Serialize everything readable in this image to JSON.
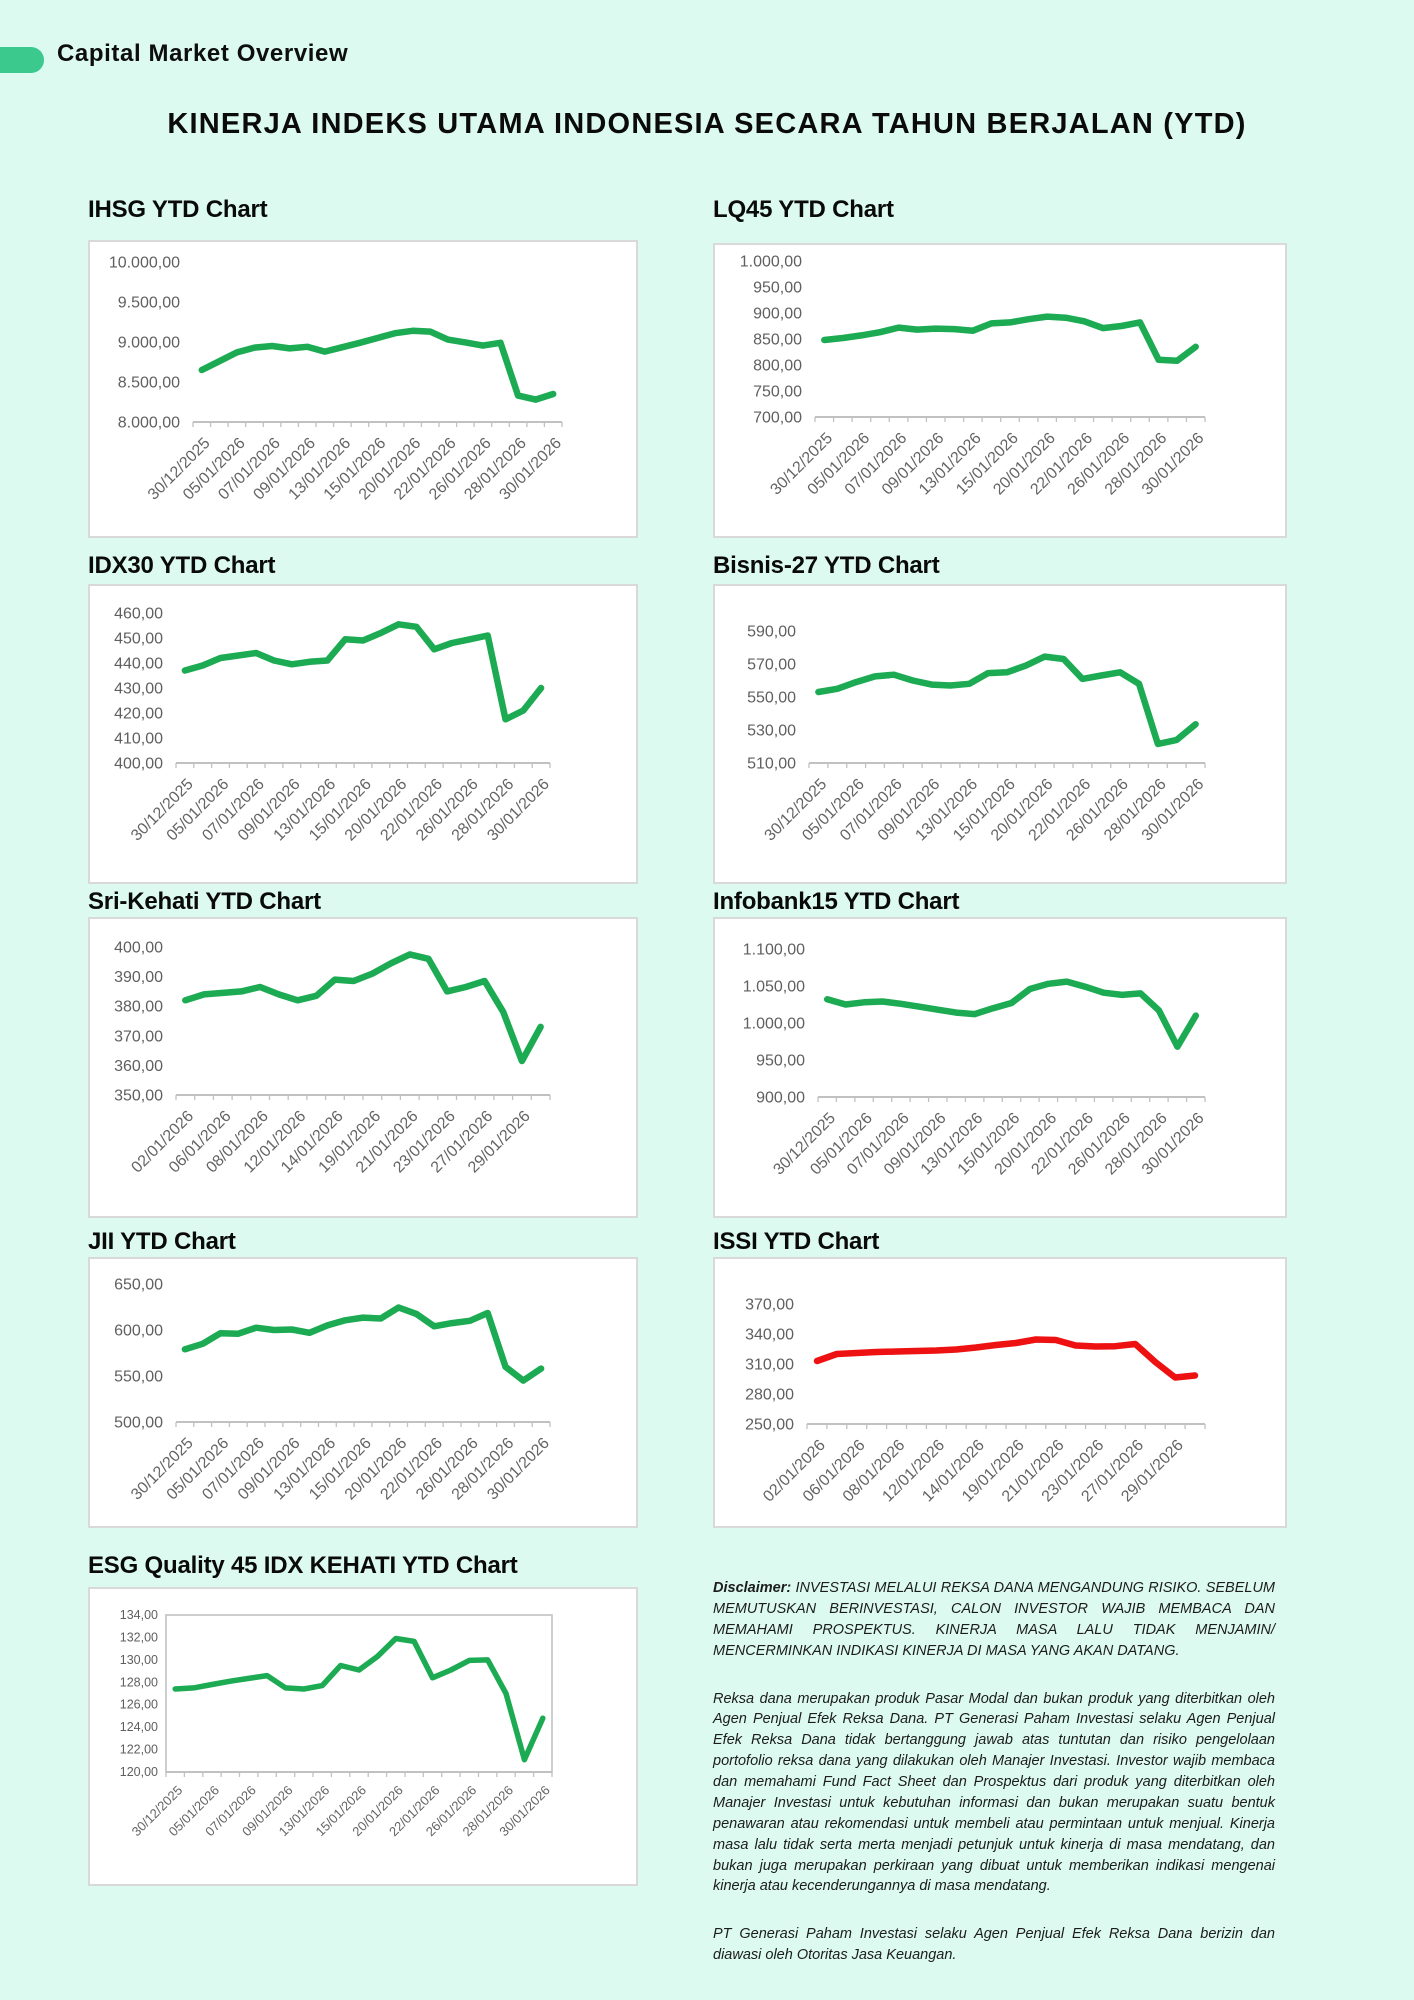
{
  "page": {
    "badge_label": "Capital Market Overview",
    "main_title": "KINERJA INDEKS UTAMA INDONESIA SECARA TAHUN BERJALAN (YTD)"
  },
  "colors": {
    "background": "#dcfaf0",
    "badge_green": "#3bc98e",
    "line_green": "#1cab52",
    "line_red": "#ee1111",
    "axis_line": "#c1c1c1",
    "axis_label": "#5f5f5f",
    "card_border": "#d9d9d9",
    "card_background": "#ffffff"
  },
  "chart_data": [
    {
      "id": "ihsg",
      "type": "line",
      "title": "IHSG YTD Chart",
      "color": "#1cab52",
      "ylim": [
        8000,
        10000
      ],
      "y_ticks": [
        "8.000,00",
        "8.500,00",
        "9.000,00",
        "9.500,00",
        "10.000,00"
      ],
      "x_labels": [
        "30/12/2025",
        "05/01/2026",
        "07/01/2026",
        "09/01/2026",
        "13/01/2026",
        "15/01/2026",
        "20/01/2026",
        "22/01/2026",
        "26/01/2026",
        "28/01/2026",
        "30/01/2026"
      ],
      "values": [
        8650,
        8760,
        8870,
        8930,
        8950,
        8920,
        8940,
        8880,
        8935,
        8990,
        9050,
        9110,
        9140,
        9130,
        9030,
        8995,
        8955,
        8990,
        8330,
        8280,
        8350
      ]
    },
    {
      "id": "lq45",
      "type": "line",
      "title": "LQ45 YTD Chart",
      "color": "#1cab52",
      "ylim": [
        700,
        1000
      ],
      "y_ticks": [
        "700,00",
        "750,00",
        "800,00",
        "850,00",
        "900,00",
        "950,00",
        "1.000,00"
      ],
      "x_labels": [
        "30/12/2025",
        "05/01/2026",
        "07/01/2026",
        "09/01/2026",
        "13/01/2026",
        "15/01/2026",
        "20/01/2026",
        "22/01/2026",
        "26/01/2026",
        "28/01/2026",
        "30/01/2026"
      ],
      "values": [
        848,
        852,
        857,
        863,
        872,
        868,
        870,
        869,
        866,
        880,
        882,
        888,
        893,
        891,
        884,
        871,
        875,
        882,
        810,
        808,
        835
      ]
    },
    {
      "id": "idx30",
      "type": "line",
      "title": "IDX30 YTD Chart",
      "color": "#1cab52",
      "ylim": [
        400,
        460
      ],
      "y_ticks": [
        "400,00",
        "410,00",
        "420,00",
        "430,00",
        "440,00",
        "450,00",
        "460,00"
      ],
      "x_labels": [
        "30/12/2025",
        "05/01/2026",
        "07/01/2026",
        "09/01/2026",
        "13/01/2026",
        "15/01/2026",
        "20/01/2026",
        "22/01/2026",
        "26/01/2026",
        "28/01/2026",
        "30/01/2026"
      ],
      "values": [
        437,
        439,
        442,
        443,
        444,
        441,
        439.5,
        440.5,
        441,
        449.5,
        449,
        452,
        455.5,
        454.5,
        445.5,
        448,
        449.5,
        451,
        417.5,
        421,
        430
      ]
    },
    {
      "id": "bisnis27",
      "type": "line",
      "title": "Bisnis-27 YTD Chart",
      "color": "#1cab52",
      "ylim": [
        510,
        590
      ],
      "y_ticks": [
        "510,00",
        "530,00",
        "550,00",
        "570,00",
        "590,00"
      ],
      "x_labels": [
        "30/12/2025",
        "05/01/2026",
        "07/01/2026",
        "09/01/2026",
        "13/01/2026",
        "15/01/2026",
        "20/01/2026",
        "22/01/2026",
        "26/01/2026",
        "28/01/2026",
        "30/01/2026"
      ],
      "values": [
        553,
        555,
        559,
        562.5,
        563.5,
        560,
        557.5,
        557,
        558,
        564.5,
        565,
        569,
        574.5,
        573,
        561,
        563,
        565,
        558,
        521.5,
        524,
        533.5
      ]
    },
    {
      "id": "srikehati",
      "type": "line",
      "title": "Sri-Kehati YTD Chart",
      "color": "#1cab52",
      "ylim": [
        350,
        400
      ],
      "y_ticks": [
        "350,00",
        "360,00",
        "370,00",
        "380,00",
        "390,00",
        "400,00"
      ],
      "x_labels": [
        "02/01/2026",
        "06/01/2026",
        "08/01/2026",
        "12/01/2026",
        "14/01/2026",
        "19/01/2026",
        "21/01/2026",
        "23/01/2026",
        "27/01/2026",
        "29/01/2026"
      ],
      "values": [
        382,
        384,
        384.5,
        385,
        386.5,
        384,
        382,
        383.5,
        389,
        388.5,
        391,
        394.5,
        397.5,
        396,
        385,
        386.5,
        388.5,
        378,
        361.5,
        373
      ]
    },
    {
      "id": "infobank15",
      "type": "line",
      "title": "Infobank15 YTD Chart",
      "color": "#1cab52",
      "ylim": [
        900,
        1100
      ],
      "y_ticks": [
        "900,00",
        "950,00",
        "1.000,00",
        "1.050,00",
        "1.100,00"
      ],
      "x_labels": [
        "30/12/2025",
        "05/01/2026",
        "07/01/2026",
        "09/01/2026",
        "13/01/2026",
        "15/01/2026",
        "20/01/2026",
        "22/01/2026",
        "26/01/2026",
        "28/01/2026",
        "30/01/2026"
      ],
      "values": [
        1032,
        1025,
        1028,
        1029,
        1026,
        1022,
        1018,
        1014,
        1012,
        1020,
        1027,
        1046,
        1053,
        1056,
        1049,
        1041,
        1038,
        1040,
        1017,
        968,
        1010
      ]
    },
    {
      "id": "jii",
      "type": "line",
      "title": "JII YTD Chart",
      "color": "#1cab52",
      "ylim": [
        500,
        650
      ],
      "y_ticks": [
        "500,00",
        "550,00",
        "600,00",
        "650,00"
      ],
      "x_labels": [
        "30/12/2025",
        "05/01/2026",
        "07/01/2026",
        "09/01/2026",
        "13/01/2026",
        "15/01/2026",
        "20/01/2026",
        "22/01/2026",
        "26/01/2026",
        "28/01/2026",
        "30/01/2026"
      ],
      "values": [
        579,
        585,
        596.5,
        596,
        602.5,
        600,
        600.5,
        597,
        605,
        610.5,
        613.5,
        612.5,
        624.5,
        617.5,
        604,
        607.5,
        610,
        618.5,
        560,
        545,
        558
      ]
    },
    {
      "id": "issi",
      "type": "line",
      "title": "ISSI YTD Chart",
      "color": "#ee1111",
      "ylim": [
        250,
        370
      ],
      "y_ticks": [
        "250,00",
        "280,00",
        "310,00",
        "340,00",
        "370,00"
      ],
      "x_labels": [
        "02/01/2026",
        "06/01/2026",
        "08/01/2026",
        "12/01/2026",
        "14/01/2026",
        "19/01/2026",
        "21/01/2026",
        "23/01/2026",
        "27/01/2026",
        "29/01/2026"
      ],
      "values": [
        313,
        320,
        321,
        322,
        322.5,
        323,
        323.5,
        324.5,
        326.5,
        329,
        331,
        334.5,
        334,
        328.5,
        327.5,
        327.8,
        330,
        312,
        296.5,
        298.5
      ]
    },
    {
      "id": "esg",
      "type": "line",
      "title": "ESG Quality 45 IDX KEHATI YTD Chart",
      "color": "#1cab52",
      "ylim": [
        120,
        134
      ],
      "y_ticks": [
        "120,00",
        "122,00",
        "124,00",
        "126,00",
        "128,00",
        "130,00",
        "132,00",
        "134,00"
      ],
      "x_labels": [
        "30/12/2025",
        "05/01/2026",
        "07/01/2026",
        "09/01/2026",
        "13/01/2026",
        "15/01/2026",
        "20/01/2026",
        "22/01/2026",
        "26/01/2026",
        "28/01/2026",
        "30/01/2026"
      ],
      "values": [
        127.4,
        127.5,
        127.8,
        128.1,
        128.35,
        128.6,
        127.5,
        127.4,
        127.7,
        129.5,
        129.1,
        130.3,
        131.9,
        131.65,
        128.4,
        129.1,
        129.95,
        130,
        127,
        121.1,
        124.8
      ]
    }
  ],
  "disclaimer": {
    "p1_label": "Disclaimer:",
    "p1": "INVESTASI MELALUI REKSA DANA MENGANDUNG RISIKO. SEBELUM MEMUTUSKAN BERINVESTASI, CALON INVESTOR WAJIB MEMBACA DAN MEMAHAMI PROSPEKTUS. KINERJA MASA LALU TIDAK MENJAMIN/ MENCERMINKAN INDIKASI KINERJA DI MASA YANG AKAN DATANG.",
    "p2": "Reksa dana merupakan produk Pasar Modal dan bukan produk yang diterbitkan oleh Agen Penjual Efek Reksa Dana. PT Generasi Paham Investasi selaku Agen Penjual Efek Reksa Dana tidak bertanggung jawab atas tuntutan dan risiko pengelolaan portofolio reksa dana yang dilakukan oleh Manajer Investasi. Investor wajib membaca dan memahami Fund Fact Sheet dan Prospektus dari produk yang diterbitkan oleh Manajer Investasi untuk kebutuhan informasi dan bukan merupakan suatu bentuk penawaran atau rekomendasi untuk membeli atau permintaan untuk menjual. Kinerja masa lalu tidak serta merta menjadi petunjuk untuk kinerja di masa mendatang, dan bukan juga merupakan perkiraan yang dibuat untuk memberikan indikasi mengenai kinerja atau kecenderungannya di masa mendatang.",
    "p3": "PT Generasi Paham Investasi selaku Agen Penjual Efek Reksa Dana berizin dan diawasi oleh Otoritas Jasa Keuangan."
  }
}
